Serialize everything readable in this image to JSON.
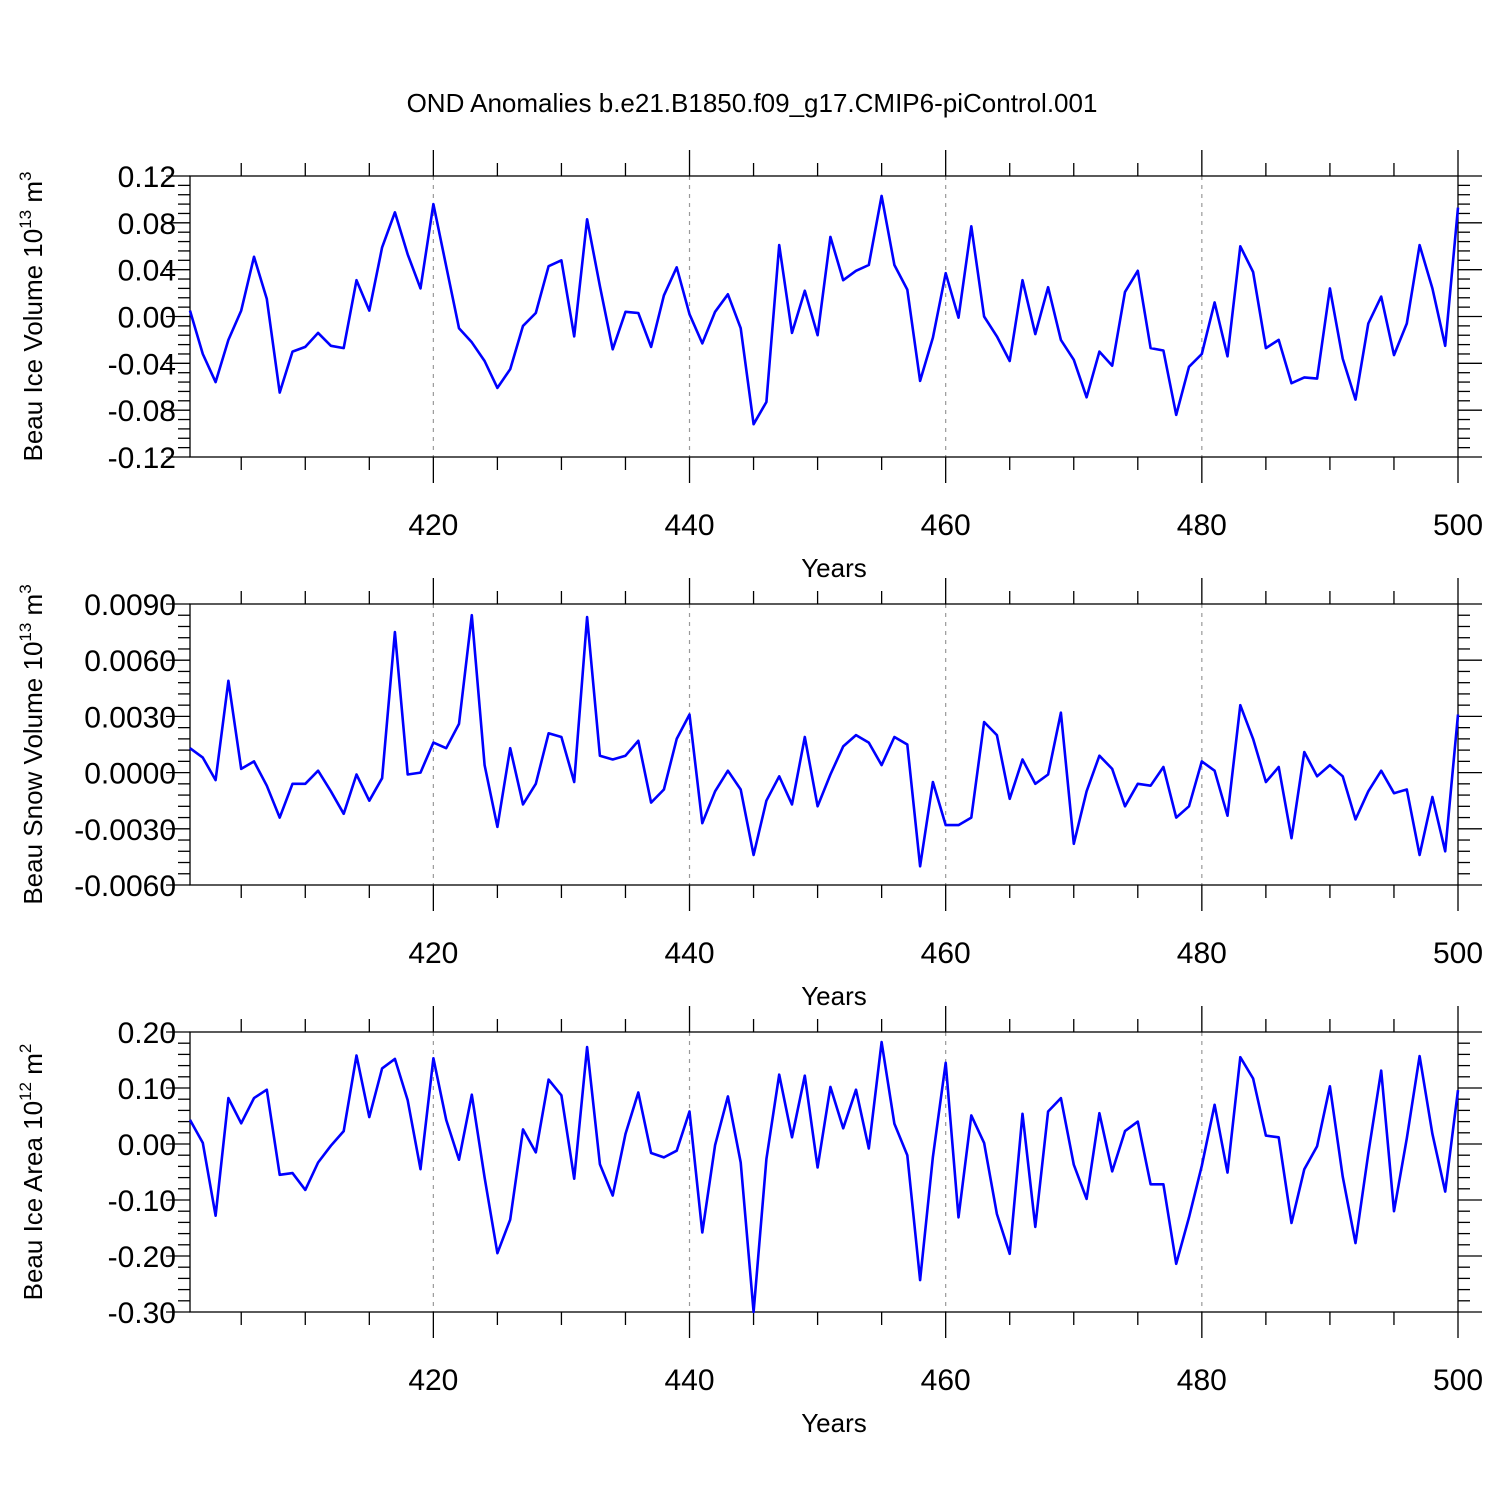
{
  "title": "OND Anomalies b.e21.B1850.f09_g17.CMIP6-piControl.001",
  "colors": {
    "line": "#0000ff",
    "grid": "#999999",
    "axis": "#000000"
  },
  "chart_data": [
    {
      "type": "line",
      "xlabel": "Years",
      "ylabel": "Beau Ice Volume 10",
      "ylabel_exp": "13",
      "ylabel_unit": "m",
      "ylabel_unit_exp": "3",
      "xlim": [
        401,
        500
      ],
      "ylim": [
        -0.12,
        0.12
      ],
      "xticks": [
        420,
        440,
        460,
        480,
        500
      ],
      "yticks": [
        -0.12,
        -0.08,
        -0.04,
        0.0,
        0.04,
        0.08,
        0.12
      ],
      "ytick_labels": [
        "-0.12",
        "-0.08",
        "-0.04",
        "0.00",
        "0.04",
        "0.08",
        "0.12"
      ],
      "grid": "x-dashed",
      "x_start": 401,
      "values": [
        0.005,
        -0.032,
        -0.056,
        -0.02,
        0.005,
        0.051,
        0.015,
        -0.065,
        -0.03,
        -0.026,
        -0.014,
        -0.025,
        -0.027,
        0.031,
        0.005,
        0.059,
        0.089,
        0.053,
        0.024,
        0.096,
        0.043,
        -0.01,
        -0.022,
        -0.038,
        -0.061,
        -0.045,
        -0.008,
        0.003,
        0.043,
        0.048,
        -0.017,
        0.083,
        0.026,
        -0.028,
        0.004,
        0.003,
        -0.026,
        0.018,
        0.042,
        0.002,
        -0.023,
        0.004,
        0.019,
        -0.01,
        -0.092,
        -0.073,
        0.061,
        -0.014,
        0.022,
        -0.016,
        0.068,
        0.031,
        0.039,
        0.044,
        0.103,
        0.044,
        0.023,
        -0.055,
        -0.018,
        0.037,
        -0.001,
        0.077,
        0.0,
        -0.017,
        -0.038,
        0.031,
        -0.015,
        0.025,
        -0.02,
        -0.037,
        -0.069,
        -0.03,
        -0.042,
        0.021,
        0.039,
        -0.027,
        -0.029,
        -0.084,
        -0.043,
        -0.032,
        0.012,
        -0.034,
        0.06,
        0.038,
        -0.027,
        -0.02,
        -0.057,
        -0.052,
        -0.053,
        0.024,
        -0.036,
        -0.071,
        -0.006,
        0.017,
        -0.033,
        -0.006,
        0.061,
        0.024,
        -0.025,
        0.093
      ]
    },
    {
      "type": "line",
      "xlabel": "Years",
      "ylabel": "Beau Snow Volume 10",
      "ylabel_exp": "13",
      "ylabel_unit": "m",
      "ylabel_unit_exp": "3",
      "xlim": [
        401,
        500
      ],
      "ylim": [
        -0.006,
        0.009
      ],
      "xticks": [
        420,
        440,
        460,
        480,
        500
      ],
      "yticks": [
        -0.006,
        -0.003,
        0.0,
        0.003,
        0.006,
        0.009
      ],
      "ytick_labels": [
        "-0.0060",
        "-0.0030",
        "0.0000",
        "0.0030",
        "0.0060",
        "0.0090"
      ],
      "grid": "x-dashed",
      "x_start": 401,
      "values": [
        0.0013,
        0.0008,
        -0.0004,
        0.0049,
        0.0002,
        0.0006,
        -0.0007,
        -0.0024,
        -0.0006,
        -0.0006,
        0.0001,
        -0.001,
        -0.0022,
        -0.0001,
        -0.0015,
        -0.0003,
        0.0075,
        -0.0001,
        0.0,
        0.0016,
        0.0013,
        0.0026,
        0.0084,
        0.0004,
        -0.0029,
        0.0013,
        -0.0017,
        -0.0006,
        0.0021,
        0.0019,
        -0.0005,
        0.0083,
        0.0009,
        0.0007,
        0.0009,
        0.0017,
        -0.0016,
        -0.0009,
        0.0018,
        0.0031,
        -0.0027,
        -0.001,
        0.0001,
        -0.0009,
        -0.0044,
        -0.0015,
        -0.0002,
        -0.0017,
        0.0019,
        -0.0018,
        -0.0001,
        0.0014,
        0.002,
        0.0016,
        0.0004,
        0.0019,
        0.0015,
        -0.005,
        -0.0005,
        -0.0028,
        -0.0028,
        -0.0024,
        0.0027,
        0.002,
        -0.0014,
        0.0007,
        -0.0006,
        -0.0001,
        0.0032,
        -0.0038,
        -0.001,
        0.0009,
        0.0002,
        -0.0018,
        -0.0006,
        -0.0007,
        0.0003,
        -0.0024,
        -0.0018,
        0.0006,
        0.0001,
        -0.0023,
        0.0036,
        0.0018,
        -0.0005,
        0.0003,
        -0.0035,
        0.0011,
        -0.0002,
        0.0004,
        -0.0002,
        -0.0025,
        -0.001,
        0.0001,
        -0.0011,
        -0.0009,
        -0.0044,
        -0.0013,
        -0.0042,
        0.0031
      ]
    },
    {
      "type": "line",
      "xlabel": "Years",
      "ylabel": "Beau Ice Area 10",
      "ylabel_exp": "12",
      "ylabel_unit": "m",
      "ylabel_unit_exp": "2",
      "xlim": [
        401,
        500
      ],
      "ylim": [
        -0.3,
        0.2
      ],
      "xticks": [
        420,
        440,
        460,
        480,
        500
      ],
      "yticks": [
        -0.3,
        -0.2,
        -0.1,
        0.0,
        0.1,
        0.2
      ],
      "ytick_labels": [
        "-0.30",
        "-0.20",
        "-0.10",
        "0.00",
        "0.10",
        "0.20"
      ],
      "grid": "x-dashed",
      "x_start": 401,
      "values": [
        0.043,
        0.002,
        -0.128,
        0.082,
        0.037,
        0.082,
        0.097,
        -0.055,
        -0.052,
        -0.082,
        -0.033,
        -0.003,
        0.023,
        0.158,
        0.048,
        0.135,
        0.152,
        0.078,
        -0.045,
        0.153,
        0.043,
        -0.028,
        0.088,
        -0.06,
        -0.195,
        -0.135,
        0.026,
        -0.015,
        0.115,
        0.087,
        -0.062,
        0.173,
        -0.036,
        -0.092,
        0.018,
        0.092,
        -0.016,
        -0.024,
        -0.012,
        0.058,
        -0.158,
        -0.002,
        0.085,
        -0.033,
        -0.3,
        -0.027,
        0.124,
        0.012,
        0.122,
        -0.042,
        0.102,
        0.028,
        0.097,
        -0.008,
        0.182,
        0.036,
        -0.02,
        -0.243,
        -0.023,
        0.145,
        -0.131,
        0.051,
        0.002,
        -0.125,
        -0.196,
        0.054,
        -0.148,
        0.058,
        0.082,
        -0.037,
        -0.098,
        0.055,
        -0.049,
        0.023,
        0.04,
        -0.072,
        -0.072,
        -0.214,
        -0.131,
        -0.039,
        0.07,
        -0.051,
        0.155,
        0.117,
        0.015,
        0.012,
        -0.141,
        -0.045,
        -0.004,
        0.103,
        -0.058,
        -0.177,
        -0.017,
        0.131,
        -0.12,
        0.01,
        0.157,
        0.018,
        -0.085,
        0.096
      ]
    }
  ]
}
